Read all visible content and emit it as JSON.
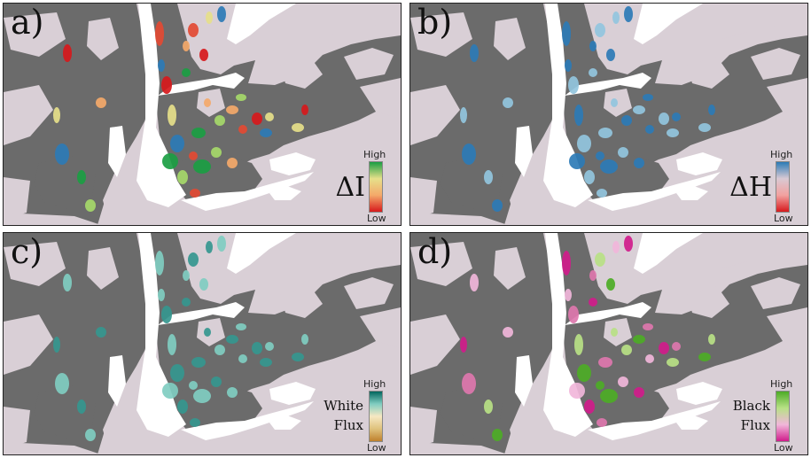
{
  "figure": {
    "panels": [
      {
        "label": "a)",
        "legend": {
          "high": "High",
          "low": "Low",
          "symbol_lines": [
            "ΔI"
          ],
          "colors": [
            "#1b9e43",
            "#e6e08a",
            "#f4a96a",
            "#d7191c"
          ]
        },
        "patch_colors": [
          "#d7191c",
          "#f4a96a",
          "#1b9e43",
          "#e6e08a",
          "#e34a33",
          "#a6d96a",
          "#2c7bb6"
        ]
      },
      {
        "label": "b)",
        "legend": {
          "high": "High",
          "low": "Low",
          "symbol_lines": [
            "ΔH"
          ],
          "colors": [
            "#2c7bb6",
            "#d9c9d3",
            "#f2a19f",
            "#d7191c"
          ]
        },
        "patch_colors": [
          "#d7191c",
          "#2c7bb6",
          "#f2a19f",
          "#ca0020",
          "#92c5de",
          "#f4a582"
        ]
      },
      {
        "label": "c)",
        "legend": {
          "high": "High",
          "low": "Low",
          "symbol_lines": [
            "White",
            "Flux"
          ],
          "colors": [
            "#01665e",
            "#80cdc1",
            "#f6e8c3",
            "#dfc27d",
            "#bf812d"
          ]
        },
        "patch_colors": [
          "#bf812d",
          "#01665e",
          "#80cdc1",
          "#dfc27d",
          "#8c510a",
          "#35978f"
        ]
      },
      {
        "label": "d)",
        "legend": {
          "high": "High",
          "low": "Low",
          "symbol_lines": [
            "Black",
            "Flux"
          ],
          "colors": [
            "#4dac26",
            "#b8e186",
            "#f1b6da",
            "#d01c8b"
          ]
        },
        "patch_colors": [
          "#4dac26",
          "#d01c8b",
          "#b8e186",
          "#f1b6da",
          "#de77ae"
        ]
      }
    ],
    "base_colors": {
      "background": "#d9cfd6",
      "tracts": "#6b6b6b",
      "water": "#ffffff"
    }
  }
}
